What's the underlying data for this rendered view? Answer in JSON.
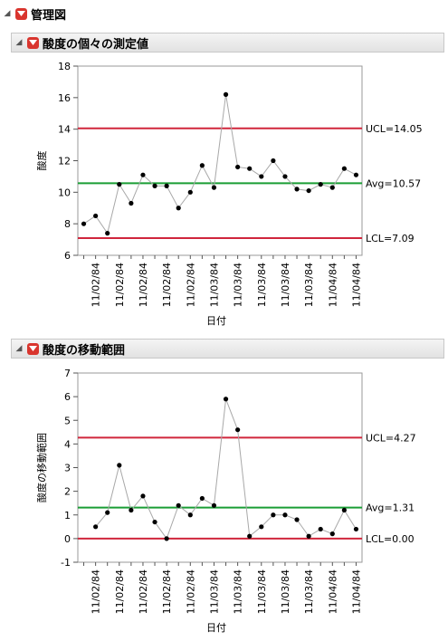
{
  "report": {
    "title": "管理図"
  },
  "sections": [
    {
      "title": "酸度の個々の測定値"
    },
    {
      "title": "酸度の移動範囲"
    }
  ],
  "chart_data": [
    {
      "type": "line",
      "ylabel": "酸度",
      "xlabel": "日付",
      "ylim": [
        6,
        18
      ],
      "yticks": [
        6,
        8,
        10,
        12,
        14,
        16,
        18
      ],
      "x_tick_labels": [
        "11/02/84",
        "11/02/84",
        "11/02/84",
        "11/02/84",
        "11/02/84",
        "11/03/84",
        "11/03/84",
        "11/03/84",
        "11/03/84",
        "11/03/84",
        "11/04/84",
        "11/04/84",
        "11/04/84"
      ],
      "values": [
        8.0,
        8.5,
        7.4,
        10.5,
        9.3,
        11.1,
        10.4,
        10.4,
        9.0,
        10.0,
        11.7,
        10.3,
        16.2,
        11.6,
        11.5,
        11.0,
        12.0,
        11.0,
        10.2,
        10.1,
        10.5,
        10.3,
        11.5,
        11.1
      ],
      "control_limits": [
        {
          "label": "UCL=14.05",
          "value": 14.05,
          "color": "#d0263c"
        },
        {
          "label": "Avg=10.57",
          "value": 10.57,
          "color": "#1a9e35"
        },
        {
          "label": "LCL=7.09",
          "value": 7.09,
          "color": "#d0263c"
        }
      ]
    },
    {
      "type": "line",
      "ylabel": "酸度の移動範囲",
      "xlabel": "日付",
      "ylim": [
        -1,
        7
      ],
      "yticks": [
        -1,
        0,
        1,
        2,
        3,
        4,
        5,
        6,
        7
      ],
      "x_tick_labels": [
        "11/02/84",
        "11/02/84",
        "11/02/84",
        "11/02/84",
        "11/02/84",
        "11/03/84",
        "11/03/84",
        "11/03/84",
        "11/03/84",
        "11/03/84",
        "11/04/84",
        "11/04/84",
        "11/04/84"
      ],
      "values": [
        null,
        0.5,
        1.1,
        3.1,
        1.2,
        1.8,
        0.7,
        0.0,
        1.4,
        1.0,
        1.7,
        1.4,
        5.9,
        4.6,
        0.1,
        0.5,
        1.0,
        1.0,
        0.8,
        0.1,
        0.4,
        0.2,
        1.2,
        0.4
      ],
      "control_limits": [
        {
          "label": "UCL=4.27",
          "value": 4.27,
          "color": "#d0263c"
        },
        {
          "label": "Avg=1.31",
          "value": 1.31,
          "color": "#1a9e35"
        },
        {
          "label": "LCL=0.00",
          "value": 0.0,
          "color": "#d0263c"
        }
      ]
    }
  ]
}
